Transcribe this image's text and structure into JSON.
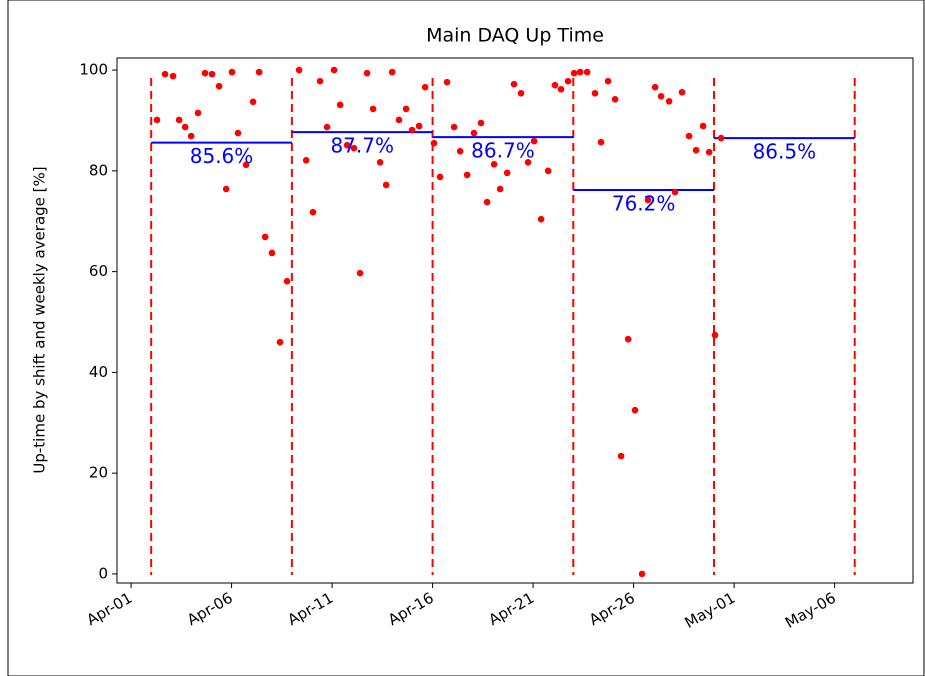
{
  "chart_data": {
    "type": "scatter",
    "title": "Main DAQ Up Time",
    "y_label": "Up-time by shift and weekly average [%]",
    "color": "#ff0000",
    "x": [
      2.29,
      2.69,
      3.09,
      3.39,
      3.69,
      3.99,
      4.33,
      4.68,
      5.03,
      5.38,
      5.73,
      6.02,
      6.32,
      6.72,
      7.07,
      7.37,
      7.67,
      8.01,
      8.41,
      8.76,
      9.36,
      9.71,
      10.05,
      10.4,
      10.75,
      11.1,
      11.4,
      11.75,
      12.09,
      12.39,
      12.74,
      13.04,
      13.39,
      13.69,
      13.99,
      14.33,
      14.68,
      14.98,
      15.33,
      15.63,
      16.07,
      16.37,
      16.72,
      17.07,
      17.37,
      17.72,
      18.06,
      18.41,
      18.71,
      19.06,
      19.36,
      19.71,
      20.05,
      20.4,
      20.75,
      21.05,
      21.4,
      21.75,
      22.09,
      22.39,
      22.74,
      23.04,
      23.34,
      23.69,
      24.08,
      24.38,
      24.73,
      25.08,
      25.38,
      25.73,
      26.07,
      26.42,
      26.72,
      27.07,
      27.37,
      27.77,
      28.06,
      28.41,
      28.76,
      29.11,
      29.46,
      29.76,
      30.05,
      30.35
    ],
    "values": [
      90.1,
      99.2,
      98.8,
      90.1,
      88.7,
      86.9,
      91.5,
      99.4,
      99.2,
      96.8,
      76.4,
      99.6,
      87.5,
      81.2,
      93.7,
      99.6,
      66.9,
      63.7,
      46.0,
      58.1,
      100,
      82.1,
      71.8,
      97.8,
      88.7,
      100,
      93.1,
      85.1,
      84.5,
      59.7,
      99.4,
      92.3,
      81.7,
      77.2,
      99.6,
      90.1,
      92.3,
      88.1,
      88.9,
      96.6,
      85.5,
      78.8,
      97.6,
      88.7,
      83.9,
      79.2,
      87.5,
      89.5,
      73.8,
      81.3,
      76.4,
      79.6,
      97.2,
      95.4,
      81.7,
      85.9,
      70.4,
      80.0,
      97.0,
      96.2,
      97.8,
      99.4,
      99.6,
      99.6,
      95.4,
      85.7,
      97.8,
      94.2,
      23.4,
      46.6,
      32.5,
      0,
      74.2,
      96.6,
      94.8,
      93.8,
      75.8,
      95.6,
      86.9,
      84.1,
      88.9,
      83.7,
      47.4,
      86.5
    ],
    "week_boundaries": [
      2,
      9,
      16,
      23,
      30,
      37
    ],
    "boundary_color": "#ff0000",
    "weekly_averages": {
      "starts": [
        2,
        9,
        16,
        23,
        30
      ],
      "ends": [
        9,
        16,
        23,
        30,
        37
      ],
      "values": [
        85.6,
        87.7,
        86.7,
        76.2,
        86.5
      ],
      "value_labels": [
        "85.6%",
        "87.7%",
        "86.7%",
        "76.2%",
        "86.5%"
      ],
      "color": "#0000ff"
    },
    "xlim": [
      0.3,
      39.9
    ],
    "ylim": [
      -1.8,
      102.4
    ],
    "xticks": [
      {
        "value": 1,
        "label": "Apr-01"
      },
      {
        "value": 6,
        "label": "Apr-06"
      },
      {
        "value": 11,
        "label": "Apr-11"
      },
      {
        "value": 16,
        "label": "Apr-16"
      },
      {
        "value": 21,
        "label": "Apr-21"
      },
      {
        "value": 26,
        "label": "Apr-26"
      },
      {
        "value": 31,
        "label": "May-01"
      },
      {
        "value": 36,
        "label": "May-06"
      }
    ],
    "yticks": [
      0,
      20,
      40,
      60,
      80,
      100
    ]
  }
}
